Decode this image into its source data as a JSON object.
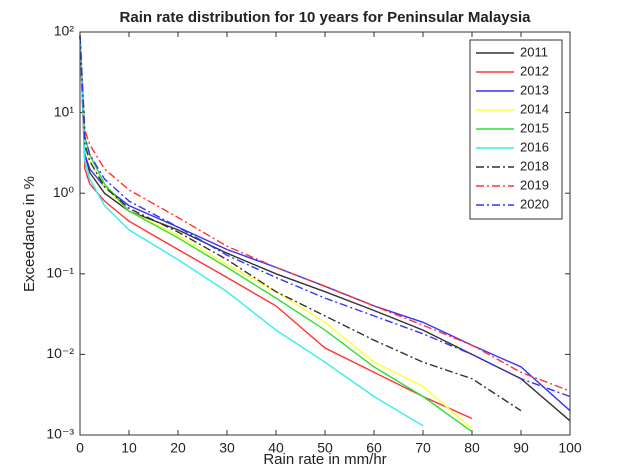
{
  "chart_data": {
    "type": "line",
    "title": "Rain rate distribution for 10 years for Peninsular Malaysia",
    "x_label": "Rain rate in mm/hr",
    "y_label": "Exceedance in %",
    "y_scale": "log",
    "legend": "top-right",
    "x": [
      0,
      1,
      2,
      5,
      10,
      20,
      30,
      40,
      50,
      60,
      70,
      80,
      90,
      100
    ],
    "xlim": [
      0,
      100
    ],
    "xticks": [
      0,
      10,
      20,
      30,
      40,
      50,
      60,
      70,
      80,
      90,
      100
    ],
    "ylim": [
      0.001,
      100
    ],
    "yticks": [
      {
        "value": 0.001,
        "label": "10⁻³"
      },
      {
        "value": 0.01,
        "label": "10⁻²"
      },
      {
        "value": 0.1,
        "label": "10⁻¹"
      },
      {
        "value": 1,
        "label": "10⁰"
      },
      {
        "value": 10,
        "label": "10¹"
      },
      {
        "value": 100,
        "label": "10²"
      }
    ],
    "series": [
      {
        "name": "2011",
        "color": "#333333",
        "style": "solid",
        "values": [
          90,
          3,
          1.8,
          1.0,
          0.6,
          0.35,
          0.18,
          0.1,
          0.06,
          0.035,
          0.02,
          0.01,
          0.005,
          0.0015
        ]
      },
      {
        "name": "2012",
        "color": "#ff3333",
        "style": "solid",
        "values": [
          90,
          2,
          1.3,
          0.8,
          0.45,
          0.2,
          0.09,
          0.04,
          0.012,
          0.006,
          0.003,
          0.0016,
          null,
          null
        ]
      },
      {
        "name": "2013",
        "color": "#3333ff",
        "style": "solid",
        "values": [
          90,
          3,
          2,
          1.2,
          0.7,
          0.38,
          0.2,
          0.12,
          0.07,
          0.04,
          0.025,
          0.013,
          0.007,
          0.002
        ]
      },
      {
        "name": "2014",
        "color": "#ffff33",
        "style": "solid",
        "values": [
          90,
          4,
          2.5,
          1.2,
          0.6,
          0.3,
          0.13,
          0.06,
          0.025,
          0.008,
          0.004,
          0.0012,
          null,
          null
        ]
      },
      {
        "name": "2015",
        "color": "#33dd33",
        "style": "solid",
        "values": [
          90,
          5,
          3,
          1.3,
          0.6,
          0.28,
          0.12,
          0.05,
          0.02,
          0.007,
          0.003,
          0.0011,
          null,
          null
        ]
      },
      {
        "name": "2016",
        "color": "#33eeee",
        "style": "solid",
        "values": [
          90,
          2.5,
          1.5,
          0.7,
          0.35,
          0.15,
          0.06,
          0.02,
          0.008,
          0.003,
          0.0013,
          null,
          null,
          null
        ]
      },
      {
        "name": "2018",
        "color": "#333333",
        "style": "dashdot",
        "values": [
          90,
          4,
          2.5,
          1.2,
          0.65,
          0.33,
          0.15,
          0.06,
          0.03,
          0.015,
          0.008,
          0.005,
          0.002,
          null
        ]
      },
      {
        "name": "2019",
        "color": "#ff3333",
        "style": "dashdot",
        "values": [
          90,
          6,
          4,
          2,
          1.1,
          0.5,
          0.22,
          0.12,
          0.07,
          0.04,
          0.023,
          0.013,
          0.006,
          0.0035
        ]
      },
      {
        "name": "2020",
        "color": "#3333ff",
        "style": "dashdot",
        "values": [
          90,
          5,
          3,
          1.5,
          0.8,
          0.38,
          0.17,
          0.09,
          0.05,
          0.03,
          0.018,
          0.01,
          0.005,
          0.003
        ]
      }
    ]
  }
}
